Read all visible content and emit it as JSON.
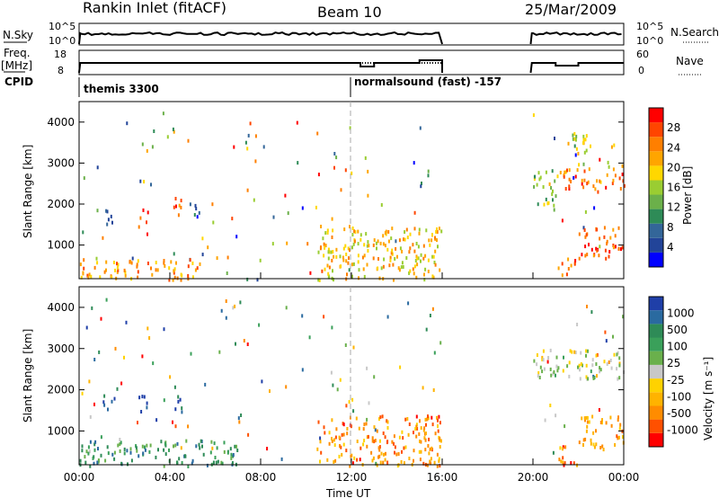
{
  "header": {
    "station": "Rankin Inlet (fitACF)",
    "beam": "Beam 10",
    "date": "25/Mar/2009"
  },
  "strips": {
    "nsky_label": "N.Sky",
    "nsky_ticks": [
      "10^5",
      "10^0"
    ],
    "nsearch_label": "N.Search",
    "nsearch_ticks": [
      "10^5",
      "10^0"
    ],
    "freq_label_1": "Freq.",
    "freq_label_2": "[MHz]",
    "freq_ticks": [
      "18",
      "8"
    ],
    "nave_label": "Nave",
    "nave_ticks": [
      "60",
      "0"
    ],
    "cpid_label": "CPID",
    "cpid_segments": [
      "themis 3300",
      "normalsound (fast) -157"
    ]
  },
  "axes": {
    "ylabel": "Slant Range [km]",
    "yticks": [
      "4000",
      "3000",
      "2000",
      "1000"
    ],
    "xticks": [
      "00:00",
      "04:00",
      "08:00",
      "12:00",
      "16:00",
      "20:00",
      "00:00"
    ],
    "xlabel": "Time UT"
  },
  "chart_data": [
    {
      "type": "heatmap",
      "name": "power",
      "x_range_hours": [
        0,
        24
      ],
      "ylim_km": [
        180,
        4500
      ],
      "data_gaps_hours": [
        [
          16.0,
          19.9
        ]
      ],
      "colorbar": {
        "label": "Power [dB]",
        "ticks": [
          "28",
          "24",
          "20",
          "16",
          "12",
          "8",
          "4"
        ],
        "colors": [
          "#0000ff",
          "#224499",
          "#336699",
          "#2e8b57",
          "#6bb04a",
          "#9acd32",
          "#ffd700",
          "#ffa500",
          "#ff7f00",
          "#ff4500",
          "#ff0000"
        ]
      },
      "regions": [
        {
          "t0": 0.0,
          "t1": 5.3,
          "r0": 180,
          "r1": 700,
          "level": 0.75
        },
        {
          "t0": 1.0,
          "t1": 1.6,
          "r0": 1500,
          "r1": 1900,
          "level": 0.15
        },
        {
          "t0": 2.6,
          "t1": 3.0,
          "r0": 1300,
          "r1": 1900,
          "level": 0.85
        },
        {
          "t0": 4.1,
          "t1": 4.5,
          "r0": 1500,
          "r1": 2200,
          "level": 0.85
        },
        {
          "t0": 4.8,
          "t1": 5.3,
          "r0": 1700,
          "r1": 2200,
          "level": 0.1
        },
        {
          "t0": 10.5,
          "t1": 16.0,
          "r0": 180,
          "r1": 1500,
          "level": 0.65
        },
        {
          "t0": 20.0,
          "t1": 21.0,
          "r0": 2000,
          "r1": 2900,
          "level": 0.45
        },
        {
          "t0": 21.0,
          "t1": 24.0,
          "r0": 2400,
          "r1": 2900,
          "level": 0.8
        },
        {
          "t0": 21.5,
          "t1": 22.5,
          "r0": 3000,
          "r1": 3800,
          "level": 0.55
        },
        {
          "t0": 21.0,
          "t1": 22.0,
          "r0": 300,
          "r1": 700,
          "level": 0.8
        },
        {
          "t0": 22.0,
          "t1": 24.0,
          "r0": 700,
          "r1": 1500,
          "level": 0.9
        }
      ]
    },
    {
      "type": "heatmap",
      "name": "velocity",
      "x_range_hours": [
        0,
        24
      ],
      "ylim_km": [
        180,
        4500
      ],
      "data_gaps_hours": [
        [
          16.0,
          19.9
        ]
      ],
      "colorbar": {
        "label": "Velocity [m s⁻¹]",
        "ticks": [
          "1000",
          "500",
          "100",
          "25",
          "-25",
          "-100",
          "-500",
          "-1000"
        ],
        "colors": [
          "#ff0000",
          "#ff5000",
          "#ff8c00",
          "#ffb300",
          "#ffd200",
          "#c8c8c8",
          "#6ab04c",
          "#3aa05a",
          "#2e8b57",
          "#2a6aa0",
          "#1f3fa8"
        ]
      },
      "regions": [
        {
          "t0": 0.0,
          "t1": 7.0,
          "r0": 180,
          "r1": 800,
          "level": 0.75
        },
        {
          "t0": 1.0,
          "t1": 1.6,
          "r0": 1500,
          "r1": 1900,
          "level": 0.95
        },
        {
          "t0": 2.6,
          "t1": 3.0,
          "r0": 1300,
          "r1": 1900,
          "level": 0.95
        },
        {
          "t0": 4.1,
          "t1": 4.5,
          "r0": 1500,
          "r1": 2200,
          "level": 0.95
        },
        {
          "t0": 10.5,
          "t1": 16.0,
          "r0": 180,
          "r1": 1400,
          "level": 0.2
        },
        {
          "t0": 20.0,
          "t1": 24.0,
          "r0": 2300,
          "r1": 3000,
          "level": 0.5
        },
        {
          "t0": 21.0,
          "t1": 22.0,
          "r0": 180,
          "r1": 700,
          "level": 0.2
        },
        {
          "t0": 22.0,
          "t1": 24.0,
          "r0": 600,
          "r1": 1400,
          "level": 0.3
        }
      ]
    }
  ]
}
